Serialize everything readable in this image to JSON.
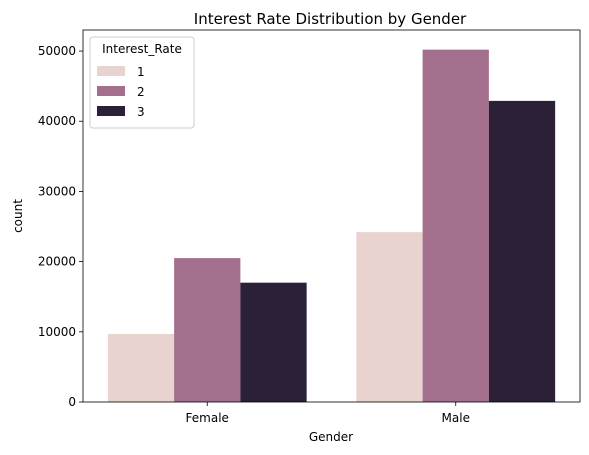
{
  "chart_data": {
    "type": "bar",
    "title": "Interest Rate Distribution by Gender",
    "xlabel": "Gender",
    "ylabel": "count",
    "categories": [
      "Female",
      "Male"
    ],
    "series": [
      {
        "name": "1",
        "color": "#e8d3cf",
        "values": [
          9700,
          24200
        ]
      },
      {
        "name": "2",
        "color": "#a36f8c",
        "values": [
          20500,
          50200
        ]
      },
      {
        "name": "3",
        "color": "#2c1f38",
        "values": [
          17000,
          42900
        ]
      }
    ],
    "ylim": [
      0,
      53000
    ],
    "yticks": [
      0,
      10000,
      20000,
      30000,
      40000,
      50000
    ],
    "grid": false,
    "legend": {
      "title": "Interest_Rate",
      "placement": "top-left"
    }
  }
}
